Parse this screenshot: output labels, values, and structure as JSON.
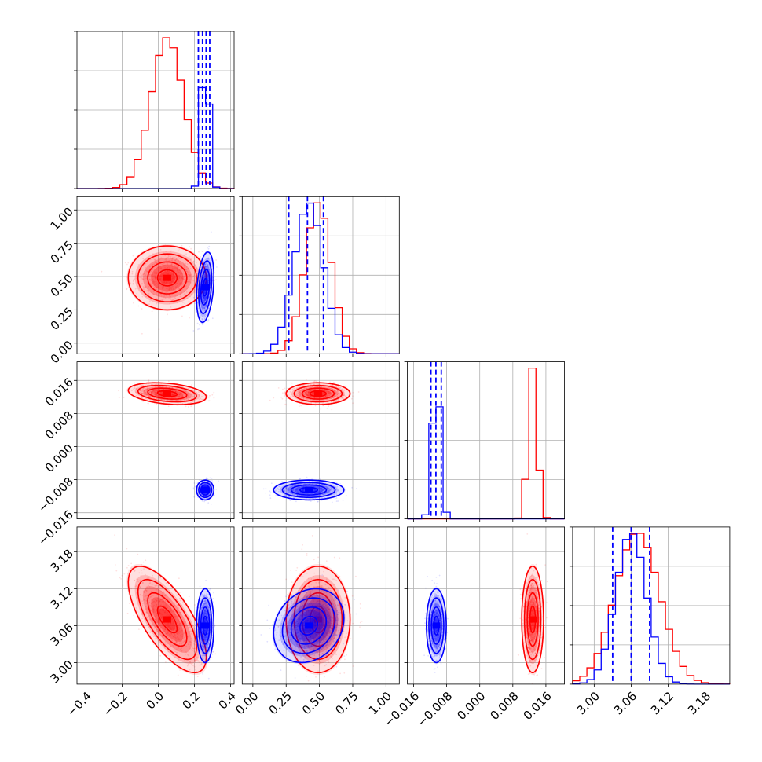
{
  "chart_data": {
    "type": "corner",
    "title": "",
    "parameters": [
      {
        "ticks": [
          -0.4,
          -0.2,
          0.0,
          0.2,
          0.4
        ],
        "tick_labels": [
          "−0.4",
          "−0.2",
          "0.0",
          "0.2",
          "0.4"
        ],
        "range": [
          -0.45,
          0.42
        ]
      },
      {
        "ticks": [
          0.0,
          0.25,
          0.5,
          0.75,
          1.0
        ],
        "tick_labels": [
          "0.00",
          "0.25",
          "0.50",
          "0.75",
          "1.00"
        ],
        "range": [
          -0.08,
          1.1
        ]
      },
      {
        "ticks": [
          -0.016,
          -0.008,
          0.0,
          0.008,
          0.016
        ],
        "tick_labels": [
          "−0.016",
          "−0.008",
          "0.000",
          "0.008",
          "0.016"
        ],
        "range": [
          -0.0175,
          0.0205
        ]
      },
      {
        "ticks": [
          3.0,
          3.06,
          3.12,
          3.18
        ],
        "tick_labels": [
          "3.00",
          "3.06",
          "3.12",
          "3.18"
        ],
        "range": [
          2.965,
          3.22
        ]
      }
    ],
    "colors": {
      "red": "#ff0000",
      "blue": "#0000ff"
    },
    "grid": true,
    "series": [
      {
        "color": "red",
        "means": [
          0.05,
          0.49,
          0.0128,
          3.07
        ],
        "sds": [
          0.09,
          0.1,
          0.0011,
          0.036
        ],
        "corr": [
          [
            1,
            0,
            -0.3,
            -0.7
          ],
          [
            0,
            1,
            0,
            0
          ],
          [
            -0.3,
            0,
            1,
            0
          ],
          [
            -0.7,
            0,
            0,
            1
          ]
        ]
      },
      {
        "color": "blue",
        "means": [
          0.26,
          0.42,
          -0.0105,
          3.06
        ],
        "sds": [
          0.02,
          0.11,
          0.001,
          0.025
        ],
        "corr": [
          [
            1,
            0.3,
            0,
            0
          ],
          [
            0.3,
            1,
            0,
            0.2
          ],
          [
            0,
            0,
            1,
            0
          ],
          [
            0,
            0.2,
            0,
            1
          ]
        ],
        "quantiles": [
          [
            0.222,
            0.245,
            0.265,
            0.285
          ],
          [
            0.27,
            0.41,
            0.53
          ],
          [
            -0.0118,
            -0.0106,
            -0.0093
          ],
          [
            3.03,
            3.06,
            3.09
          ]
        ]
      }
    ]
  }
}
